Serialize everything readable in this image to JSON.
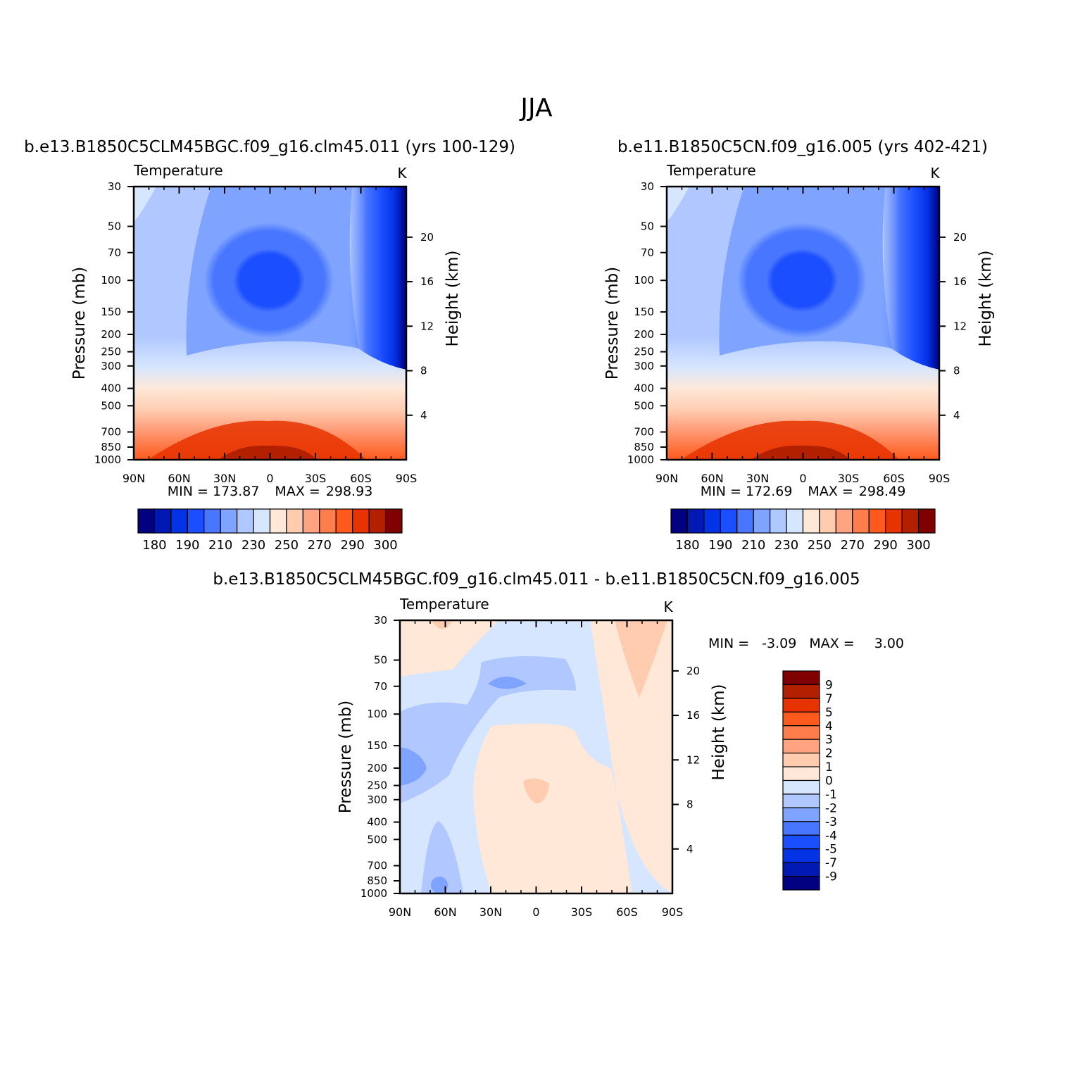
{
  "figure_title": "JJA",
  "chart_data": [
    {
      "type": "heatmap",
      "id": "model-a",
      "title": "b.e13.B1850C5CLM45BGC.f09_g16.clm45.011 (yrs 100-129)",
      "variable": "Temperature",
      "units": "K",
      "ylabel": "Pressure (mb)",
      "ylabel_right": "Height (km)",
      "x_ticks": [
        "90N",
        "60N",
        "30N",
        "0",
        "30S",
        "60S",
        "90S"
      ],
      "y_ticks": [
        "30",
        "50",
        "70",
        "100",
        "150",
        "200",
        "250",
        "300",
        "400",
        "500",
        "700",
        "850",
        "1000"
      ],
      "y_right_ticks": [
        "20",
        "16",
        "12",
        "8",
        "4"
      ],
      "stats": {
        "min_label": "MIN =",
        "min": "173.87",
        "max_label": "MAX =",
        "max": "298.93"
      },
      "colorbar_levels": [
        "180",
        "190",
        "210",
        "230",
        "250",
        "270",
        "290",
        "300"
      ],
      "colors": [
        "#000080",
        "#0019B3",
        "#0433E6",
        "#1B4EFF",
        "#4876FF",
        "#7FA4FF",
        "#B0C8FF",
        "#D6E6FF",
        "#FFE8D8",
        "#FFCCB0",
        "#FFA380",
        "#FF7D4D",
        "#FF5A1E",
        "#E63300",
        "#B32000",
        "#800000"
      ]
    },
    {
      "type": "heatmap",
      "id": "model-b",
      "title": "b.e11.B1850C5CN.f09_g16.005 (yrs 402-421)",
      "variable": "Temperature",
      "units": "K",
      "ylabel": "Pressure (mb)",
      "ylabel_right": "Height (km)",
      "x_ticks": [
        "90N",
        "60N",
        "30N",
        "0",
        "30S",
        "60S",
        "90S"
      ],
      "y_ticks": [
        "30",
        "50",
        "70",
        "100",
        "150",
        "200",
        "250",
        "300",
        "400",
        "500",
        "700",
        "850",
        "1000"
      ],
      "y_right_ticks": [
        "20",
        "16",
        "12",
        "8",
        "4"
      ],
      "stats": {
        "min_label": "MIN =",
        "min": "172.69",
        "max_label": "MAX =",
        "max": "298.49"
      },
      "colorbar_levels": [
        "180",
        "190",
        "210",
        "230",
        "250",
        "270",
        "290",
        "300"
      ],
      "colors": [
        "#000080",
        "#0019B3",
        "#0433E6",
        "#1B4EFF",
        "#4876FF",
        "#7FA4FF",
        "#B0C8FF",
        "#D6E6FF",
        "#FFE8D8",
        "#FFCCB0",
        "#FFA380",
        "#FF7D4D",
        "#FF5A1E",
        "#E63300",
        "#B32000",
        "#800000"
      ]
    },
    {
      "type": "heatmap",
      "id": "difference",
      "title": "b.e13.B1850C5CLM45BGC.f09_g16.clm45.011 - b.e11.B1850C5CN.f09_g16.005",
      "variable": "Temperature",
      "units": "K",
      "ylabel": "Pressure (mb)",
      "ylabel_right": "Height (km)",
      "x_ticks": [
        "90N",
        "60N",
        "30N",
        "0",
        "30S",
        "60S",
        "90S"
      ],
      "y_ticks": [
        "30",
        "50",
        "70",
        "100",
        "150",
        "200",
        "250",
        "300",
        "400",
        "500",
        "700",
        "850",
        "1000"
      ],
      "y_right_ticks": [
        "20",
        "16",
        "12",
        "8",
        "4"
      ],
      "stats": {
        "min_label": "MIN =",
        "min": "-3.09",
        "max_label": "MAX =",
        "max": "3.00"
      },
      "colorbar_levels": [
        "9",
        "7",
        "5",
        "4",
        "3",
        "2",
        "1",
        "0",
        "-1",
        "-2",
        "-3",
        "-4",
        "-5",
        "-7",
        "-9"
      ],
      "colors": [
        "#800000",
        "#B32000",
        "#E63300",
        "#FF5A1E",
        "#FF7D4D",
        "#FFA380",
        "#FFCCB0",
        "#FFE8D8",
        "#D6E6FF",
        "#B0C8FF",
        "#7FA4FF",
        "#4876FF",
        "#1B4EFF",
        "#0433E6",
        "#0019B3",
        "#000080"
      ]
    }
  ]
}
